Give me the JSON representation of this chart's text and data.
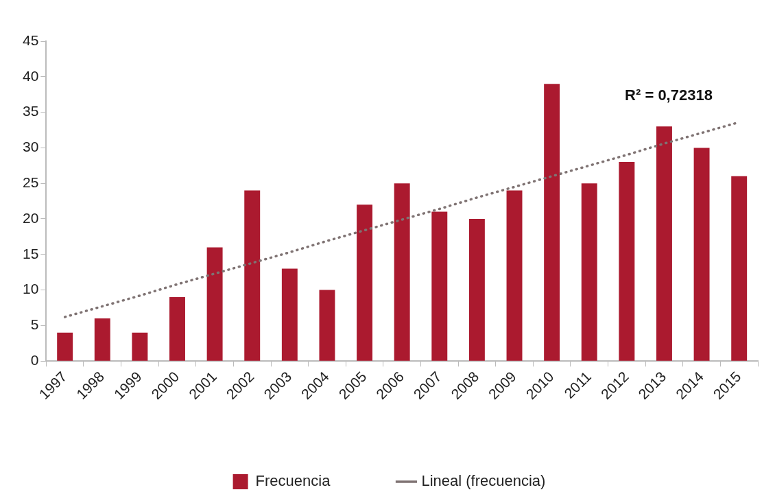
{
  "chart_data": {
    "type": "bar",
    "categories": [
      "1997",
      "1998",
      "1999",
      "2000",
      "2001",
      "2002",
      "2003",
      "2004",
      "2005",
      "2006",
      "2007",
      "2008",
      "2009",
      "2010",
      "2011",
      "2012",
      "2013",
      "2014",
      "2015"
    ],
    "series": [
      {
        "name": "Frecuencia",
        "color": "#ab1a2f",
        "values": [
          4,
          6,
          4,
          9,
          16,
          24,
          13,
          10,
          22,
          25,
          21,
          20,
          24,
          39,
          25,
          28,
          33,
          30,
          26
        ]
      },
      {
        "name": "Lineal (frecuencia)",
        "type": "line",
        "color": "#7f7373",
        "line_style": "dotted",
        "marker": "none",
        "values": [
          6.2,
          7.7,
          9.2,
          10.8,
          12.3,
          13.8,
          15.3,
          16.9,
          18.4,
          19.9,
          21.4,
          23.0,
          24.5,
          26.0,
          27.5,
          29.0,
          30.6,
          32.1,
          33.6
        ]
      }
    ],
    "ylim": [
      0,
      45
    ],
    "yticks": [
      0,
      5,
      10,
      15,
      20,
      25,
      30,
      35,
      40,
      45
    ],
    "grid": false,
    "legend": "bottom",
    "annotations": [
      "R² = 0,72318"
    ]
  }
}
